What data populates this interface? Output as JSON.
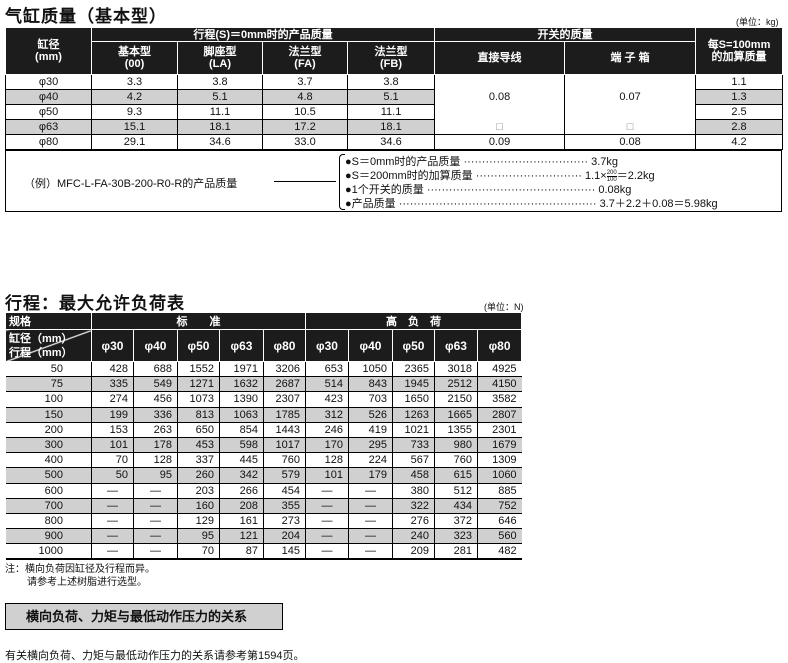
{
  "mass": {
    "title": "气缸质量（基本型）",
    "unit": "(单位：kg)",
    "headers": {
      "bore": "缸径\n(mm)",
      "stroke0": "行程(S)＝0mm时的产品质量",
      "basic": "基本型\n(00)",
      "foot": "脚座型\n(LA)",
      "fa": "法兰型\n(FA)",
      "fb": "法兰型\n(FB)",
      "switch": "开关的质量",
      "lead": "直接导线",
      "terminal": "端 子 箱",
      "per100": "每S=100mm\n的加算质量"
    },
    "rows": [
      {
        "bore": "φ30",
        "v": [
          "3.3",
          "3.8",
          "3.7",
          "3.8"
        ],
        "add": "1.1"
      },
      {
        "bore": "φ40",
        "v": [
          "4.2",
          "5.1",
          "4.8",
          "5.1"
        ],
        "add": "1.3"
      },
      {
        "bore": "φ50",
        "v": [
          "9.3",
          "11.1",
          "10.5",
          "11.1"
        ],
        "add": "2.5"
      },
      {
        "bore": "φ63",
        "v": [
          "15.1",
          "18.1",
          "17.2",
          "18.1"
        ],
        "add": "2.8"
      },
      {
        "bore": "φ80",
        "v": [
          "29.1",
          "34.6",
          "33.0",
          "34.6"
        ],
        "add": "4.2"
      }
    ],
    "switch_small": {
      "lead": "0.08",
      "terminal": "0.07",
      "mark": "□"
    },
    "switch_80": {
      "lead": "0.09",
      "terminal": "0.08"
    },
    "example": {
      "label": "（例）MFC-L-FA-30B-200-R0-R的产品质量",
      "l1": "●S＝0mm时的产品质量 ·································· 3.7kg",
      "l2a": "●S＝200mm时的加算质量 ····························· 1.1×",
      "frac_n": "200",
      "frac_d": "100",
      "l2b": "＝2.2kg",
      "l3": "●1个开关的质量 ·············································· 0.08kg",
      "l4": "●产品质量 ······················································ 3.7＋2.2＋0.08＝5.98kg"
    }
  },
  "load": {
    "title": "行程：最大允许负荷表",
    "unit": "(单位：N)",
    "spec": "规格",
    "standard": "标　　准",
    "high": "高　负　荷",
    "bore": "缸径（mm）",
    "stroke": "行程（mm）",
    "bores": [
      "φ30",
      "φ40",
      "φ50",
      "φ63",
      "φ80",
      "φ30",
      "φ40",
      "φ50",
      "φ63",
      "φ80"
    ],
    "rows": [
      [
        "50",
        "428",
        "688",
        "1552",
        "1971",
        "3206",
        "653",
        "1050",
        "2365",
        "3018",
        "4925"
      ],
      [
        "75",
        "335",
        "549",
        "1271",
        "1632",
        "2687",
        "514",
        "843",
        "1945",
        "2512",
        "4150"
      ],
      [
        "100",
        "274",
        "456",
        "1073",
        "1390",
        "2307",
        "423",
        "703",
        "1650",
        "2150",
        "3582"
      ],
      [
        "150",
        "199",
        "336",
        "813",
        "1063",
        "1785",
        "312",
        "526",
        "1263",
        "1665",
        "2807"
      ],
      [
        "200",
        "153",
        "263",
        "650",
        "854",
        "1443",
        "246",
        "419",
        "1021",
        "1355",
        "2301"
      ],
      [
        "300",
        "101",
        "178",
        "453",
        "598",
        "1017",
        "170",
        "295",
        "733",
        "980",
        "1679"
      ],
      [
        "400",
        "70",
        "128",
        "337",
        "445",
        "760",
        "128",
        "224",
        "567",
        "760",
        "1309"
      ],
      [
        "500",
        "50",
        "95",
        "260",
        "342",
        "579",
        "101",
        "179",
        "458",
        "615",
        "1060"
      ],
      [
        "600",
        "—",
        "—",
        "203",
        "266",
        "454",
        "—",
        "—",
        "380",
        "512",
        "885"
      ],
      [
        "700",
        "—",
        "—",
        "160",
        "208",
        "355",
        "—",
        "—",
        "322",
        "434",
        "752"
      ],
      [
        "800",
        "—",
        "—",
        "129",
        "161",
        "273",
        "—",
        "—",
        "276",
        "372",
        "646"
      ],
      [
        "900",
        "—",
        "—",
        "95",
        "121",
        "204",
        "—",
        "—",
        "240",
        "323",
        "560"
      ],
      [
        "1000",
        "—",
        "—",
        "70",
        "87",
        "145",
        "—",
        "—",
        "209",
        "281",
        "482"
      ]
    ],
    "note1": "注：横向负荷因缸径及行程而异。",
    "note2": "请参考上述树脂进行选型。"
  },
  "link_button": "横向负荷、力矩与最低动作压力的关系",
  "footer": "有关横向负荷、力矩与最低动作压力的关系请参考第1594页。"
}
